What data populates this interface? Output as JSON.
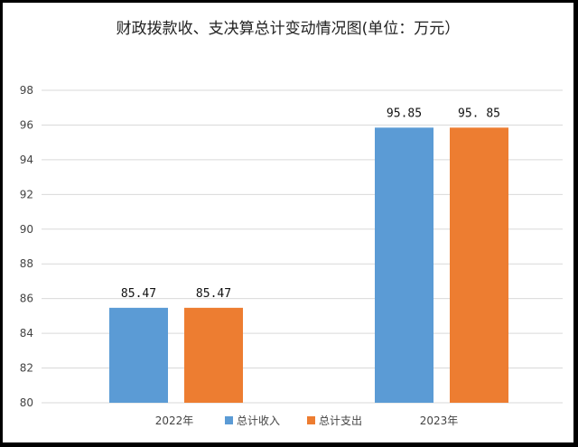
{
  "chart_data": {
    "type": "bar",
    "title": "财政拨款收、支决算总计变动情况图(单位：万元）",
    "categories": [
      "2022年",
      "2023年"
    ],
    "series": [
      {
        "name": "总计收入",
        "values": [
          85.47,
          95.85
        ],
        "labels": [
          "85.47",
          "95.85"
        ]
      },
      {
        "name": "总计支出",
        "values": [
          85.47,
          95.85
        ],
        "labels": [
          "85.47",
          "95. 85"
        ]
      }
    ],
    "colors": [
      "#5b9bd5",
      "#ed7d31"
    ],
    "ylim": [
      80,
      98
    ],
    "yticks": [
      "98",
      "96",
      "94",
      "92",
      "90",
      "88",
      "86",
      "84",
      "82",
      "80"
    ],
    "grid": true,
    "legend": "bottom"
  }
}
